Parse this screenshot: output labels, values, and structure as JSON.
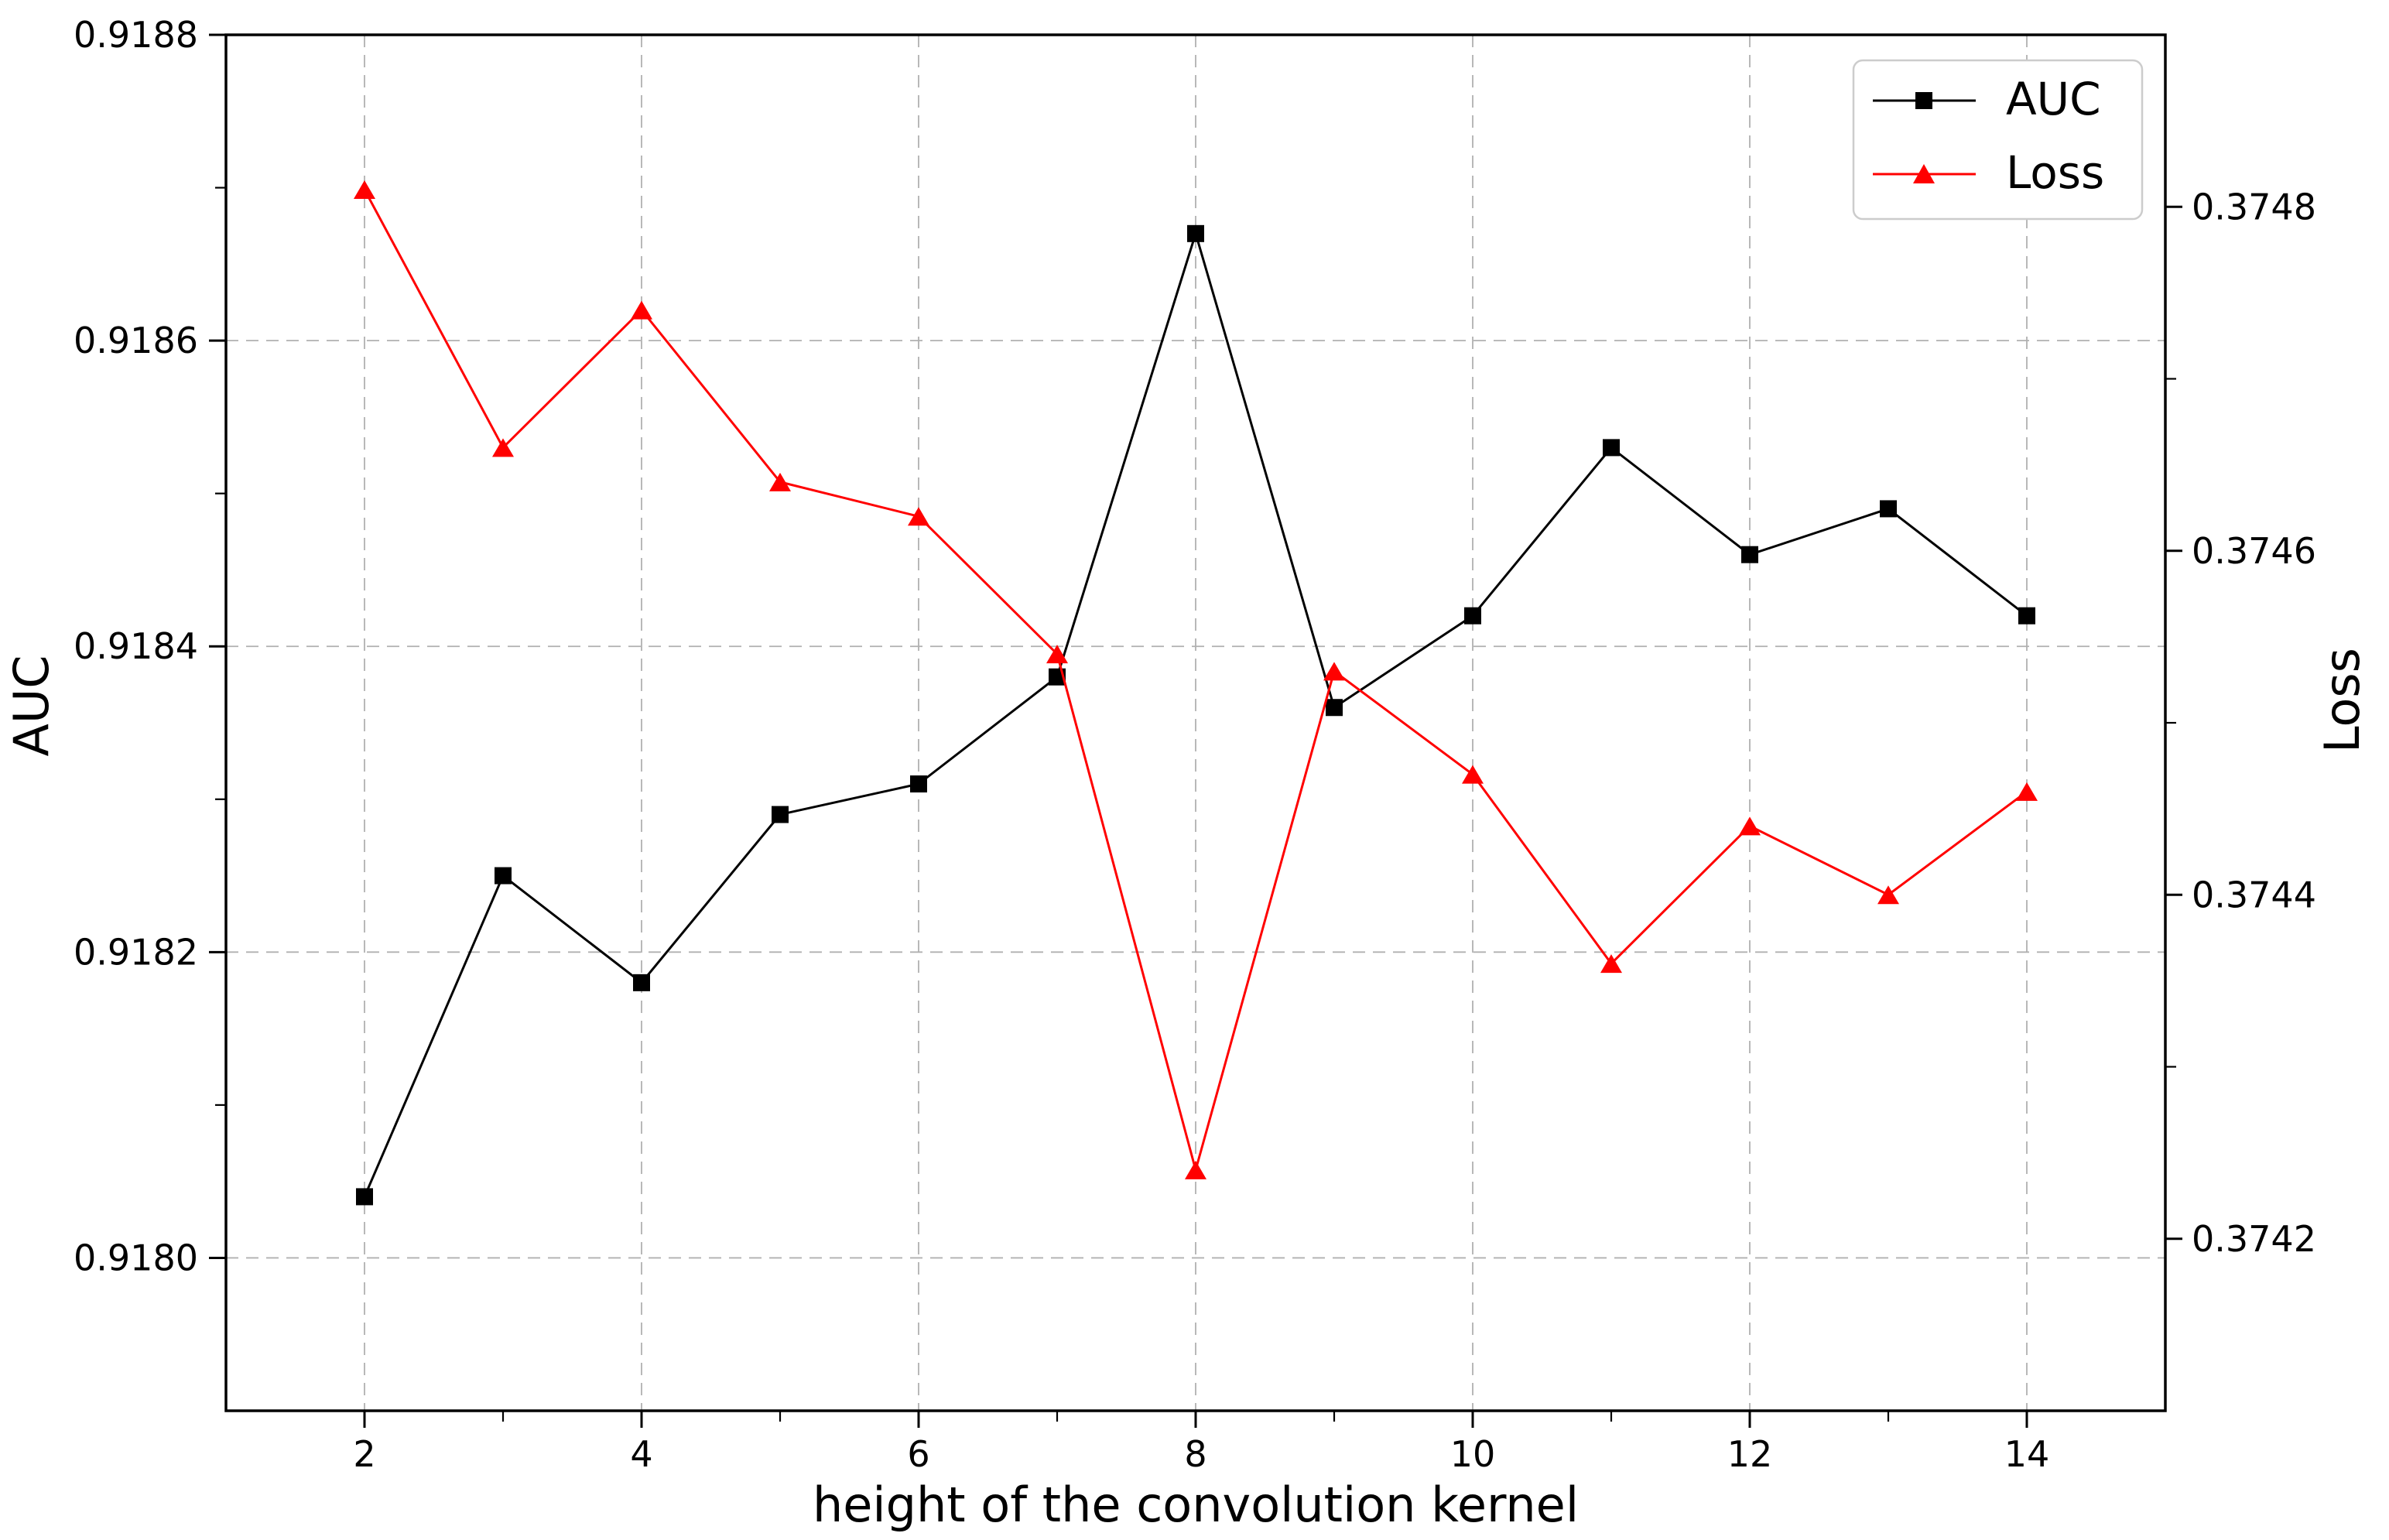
{
  "chart_data": {
    "type": "line",
    "title": "",
    "xlabel": "height of the convolution kernel",
    "ylabel_left": "AUC",
    "ylabel_right": "Loss",
    "x": [
      2,
      3,
      4,
      5,
      6,
      7,
      8,
      9,
      10,
      11,
      12,
      13,
      14
    ],
    "series": [
      {
        "name": "AUC",
        "axis": "left",
        "color": "#000000",
        "marker": "square",
        "values": [
          0.91804,
          0.91825,
          0.91818,
          0.91829,
          0.91831,
          0.91838,
          0.91867,
          0.91836,
          0.91842,
          0.91853,
          0.91846,
          0.91849,
          0.91842
        ]
      },
      {
        "name": "Loss",
        "axis": "right",
        "color": "#ff0000",
        "marker": "triangle",
        "values": [
          0.37481,
          0.37466,
          0.37474,
          0.37464,
          0.37462,
          0.37454,
          0.37424,
          0.37453,
          0.37447,
          0.37436,
          0.37444,
          0.3744,
          0.37446
        ]
      }
    ],
    "x_axis": {
      "lim": [
        1,
        15
      ],
      "major_ticks": [
        2,
        4,
        6,
        8,
        10,
        12,
        14
      ],
      "tick_labels": [
        "2",
        "4",
        "6",
        "8",
        "10",
        "12",
        "14"
      ],
      "minor_ticks": [
        3,
        5,
        7,
        9,
        11,
        13
      ]
    },
    "y_left": {
      "lim": [
        0.9179,
        0.9188
      ],
      "major_ticks": [
        0.9188,
        0.9186,
        0.9184,
        0.9182,
        0.918
      ],
      "tick_labels": [
        "0.9188",
        "0.9186",
        "0.9184",
        "0.9182",
        "0.9180"
      ],
      "minor_ticks": [
        0.9187,
        0.9185,
        0.9183,
        0.9181
      ]
    },
    "y_right": {
      "lim": [
        0.3741,
        0.3749
      ],
      "major_ticks": [
        0.3748,
        0.3746,
        0.3744,
        0.3742
      ],
      "tick_labels": [
        "0.3748",
        "0.3746",
        "0.3744",
        "0.3742"
      ],
      "minor_ticks": [
        0.3747,
        0.3745,
        0.3743
      ]
    },
    "legend": {
      "position": "top-right",
      "entries": [
        {
          "label": "AUC",
          "color": "#000000",
          "marker": "square"
        },
        {
          "label": "Loss",
          "color": "#ff0000",
          "marker": "triangle"
        }
      ]
    },
    "grid": true,
    "grid_color": "#b0b0b0",
    "background": "#ffffff"
  }
}
